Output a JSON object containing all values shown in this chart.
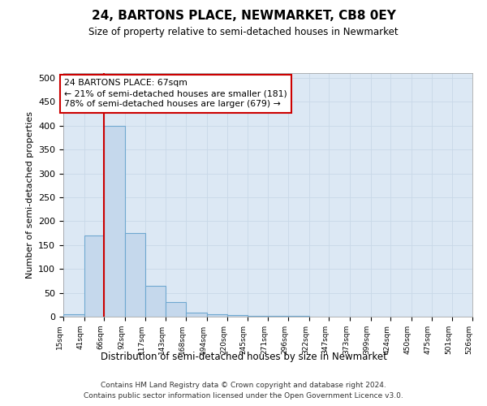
{
  "title": "24, BARTONS PLACE, NEWMARKET, CB8 0EY",
  "subtitle": "Size of property relative to semi-detached houses in Newmarket",
  "xlabel": "Distribution of semi-detached houses by size in Newmarket",
  "ylabel": "Number of semi-detached properties",
  "bar_values": [
    5,
    170,
    400,
    175,
    65,
    30,
    8,
    5,
    3,
    2,
    2,
    1,
    0,
    0,
    0,
    0,
    0,
    0,
    0,
    0
  ],
  "bin_edges": [
    15,
    41,
    66,
    92,
    117,
    143,
    168,
    194,
    220,
    245,
    271,
    296,
    322,
    347,
    373,
    399,
    424,
    450,
    475,
    501,
    526
  ],
  "bin_labels": [
    "15sqm",
    "41sqm",
    "66sqm",
    "92sqm",
    "117sqm",
    "143sqm",
    "168sqm",
    "194sqm",
    "220sqm",
    "245sqm",
    "271sqm",
    "296sqm",
    "322sqm",
    "347sqm",
    "373sqm",
    "399sqm",
    "424sqm",
    "450sqm",
    "475sqm",
    "501sqm",
    "526sqm"
  ],
  "property_line_x": 66,
  "bar_color": "#c5d8ec",
  "bar_edge_color": "#6fa8d0",
  "property_line_color": "#cc0000",
  "annotation_line1": "24 BARTONS PLACE: 67sqm",
  "annotation_line2": "← 21% of semi-detached houses are smaller (181)",
  "annotation_line3": "78% of semi-detached houses are larger (679) →",
  "annotation_box_color": "#ffffff",
  "annotation_box_edge_color": "#cc0000",
  "grid_color": "#c8d8e8",
  "background_color": "#dce8f4",
  "footer_line1": "Contains HM Land Registry data © Crown copyright and database right 2024.",
  "footer_line2": "Contains public sector information licensed under the Open Government Licence v3.0.",
  "ylim": [
    0,
    510
  ],
  "yticks": [
    0,
    50,
    100,
    150,
    200,
    250,
    300,
    350,
    400,
    450,
    500
  ]
}
